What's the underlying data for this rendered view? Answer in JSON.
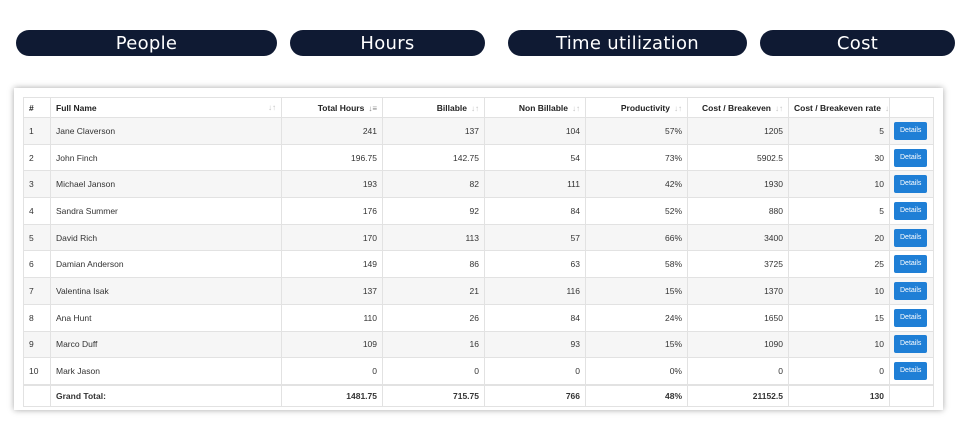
{
  "tabs": [
    "People",
    "Hours",
    "Time utilization",
    "Cost"
  ],
  "table": {
    "headers": [
      "#",
      "Full Name",
      "Total Hours",
      "Billable",
      "Non Billable",
      "Productivity",
      "Cost / Breakeven",
      "Cost / Breakeven rate"
    ],
    "rows": [
      {
        "n": "1",
        "name": "Jane Claverson",
        "total": "241",
        "billable": "137",
        "nonbillable": "104",
        "productivity": "57%",
        "cost": "1205",
        "rate": "5"
      },
      {
        "n": "2",
        "name": "John Finch",
        "total": "196.75",
        "billable": "142.75",
        "nonbillable": "54",
        "productivity": "73%",
        "cost": "5902.5",
        "rate": "30"
      },
      {
        "n": "3",
        "name": "Michael Janson",
        "total": "193",
        "billable": "82",
        "nonbillable": "111",
        "productivity": "42%",
        "cost": "1930",
        "rate": "10"
      },
      {
        "n": "4",
        "name": "Sandra Summer",
        "total": "176",
        "billable": "92",
        "nonbillable": "84",
        "productivity": "52%",
        "cost": "880",
        "rate": "5"
      },
      {
        "n": "5",
        "name": "David Rich",
        "total": "170",
        "billable": "113",
        "nonbillable": "57",
        "productivity": "66%",
        "cost": "3400",
        "rate": "20"
      },
      {
        "n": "6",
        "name": "Damian Anderson",
        "total": "149",
        "billable": "86",
        "nonbillable": "63",
        "productivity": "58%",
        "cost": "3725",
        "rate": "25"
      },
      {
        "n": "7",
        "name": "Valentina Isak",
        "total": "137",
        "billable": "21",
        "nonbillable": "116",
        "productivity": "15%",
        "cost": "1370",
        "rate": "10"
      },
      {
        "n": "8",
        "name": "Ana Hunt",
        "total": "110",
        "billable": "26",
        "nonbillable": "84",
        "productivity": "24%",
        "cost": "1650",
        "rate": "15"
      },
      {
        "n": "9",
        "name": "Marco Duff",
        "total": "109",
        "billable": "16",
        "nonbillable": "93",
        "productivity": "15%",
        "cost": "1090",
        "rate": "10"
      },
      {
        "n": "10",
        "name": "Mark Jason",
        "total": "0",
        "billable": "0",
        "nonbillable": "0",
        "productivity": "0%",
        "cost": "0",
        "rate": "0"
      }
    ],
    "details_label": "Details",
    "footer": {
      "label": "Grand Total:",
      "total": "1481.75",
      "billable": "715.75",
      "nonbillable": "766",
      "productivity": "48%",
      "cost": "21152.5",
      "rate": "130"
    }
  }
}
